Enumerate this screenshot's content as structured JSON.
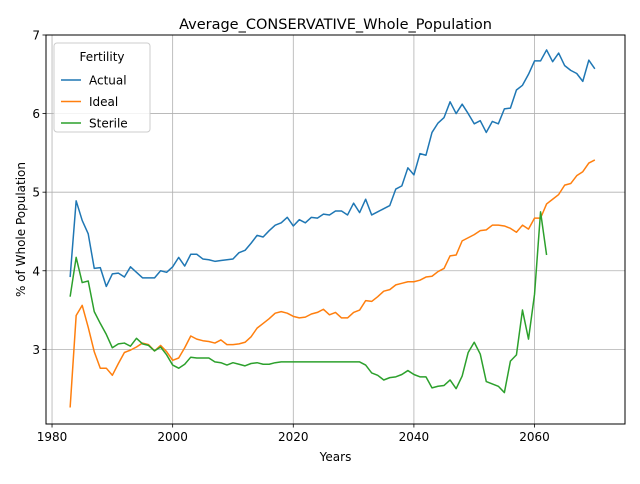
{
  "chart_data": {
    "type": "line",
    "title": "Average_CONSERVATIVE_Whole_Population",
    "xlabel": "Years",
    "ylabel": "% of Whole Population",
    "xlim": [
      1979,
      2075
    ],
    "ylim": [
      2.05,
      7.0
    ],
    "xticks": [
      1980,
      2000,
      2020,
      2040,
      2060
    ],
    "yticks": [
      3,
      4,
      5,
      6,
      7
    ],
    "grid": true,
    "legend": {
      "title": "Fertility",
      "position": "upper-left"
    },
    "series": [
      {
        "name": "Actual",
        "color": "#1f77b4",
        "x": [
          1983,
          1984,
          1985,
          1986,
          1987,
          1988,
          1989,
          1990,
          1991,
          1992,
          1993,
          1994,
          1995,
          1996,
          1997,
          1998,
          1999,
          2000,
          2001,
          2002,
          2003,
          2004,
          2005,
          2006,
          2007,
          2008,
          2009,
          2010,
          2011,
          2012,
          2013,
          2014,
          2015,
          2016,
          2017,
          2018,
          2019,
          2020,
          2021,
          2022,
          2023,
          2024,
          2025,
          2026,
          2027,
          2028,
          2029,
          2030,
          2031,
          2032,
          2033,
          2034,
          2035,
          2036,
          2037,
          2038,
          2039,
          2040,
          2041,
          2042,
          2043,
          2044,
          2045,
          2046,
          2047,
          2048,
          2049,
          2050,
          2051,
          2052,
          2053,
          2054,
          2055,
          2056,
          2057,
          2058,
          2059,
          2060,
          2061,
          2062,
          2063,
          2064,
          2065,
          2066,
          2067,
          2068,
          2069,
          2070
        ],
        "values": [
          3.92,
          4.89,
          4.64,
          4.47,
          4.03,
          4.04,
          3.8,
          3.96,
          3.97,
          3.92,
          4.05,
          3.98,
          3.91,
          3.91,
          3.91,
          4.0,
          3.98,
          4.05,
          4.17,
          4.06,
          4.21,
          4.21,
          4.15,
          4.14,
          4.12,
          4.13,
          4.14,
          4.15,
          4.23,
          4.26,
          4.35,
          4.45,
          4.43,
          4.51,
          4.58,
          4.61,
          4.68,
          4.57,
          4.65,
          4.61,
          4.68,
          4.67,
          4.72,
          4.71,
          4.76,
          4.76,
          4.71,
          4.86,
          4.74,
          4.91,
          4.71,
          4.75,
          4.79,
          4.83,
          5.04,
          5.08,
          5.31,
          5.22,
          5.49,
          5.47,
          5.76,
          5.88,
          5.95,
          6.15,
          6.0,
          6.12,
          6.0,
          5.87,
          5.91,
          5.76,
          5.9,
          5.87,
          6.06,
          6.07,
          6.3,
          6.36,
          6.5,
          6.67,
          6.67,
          6.81,
          6.66,
          6.77,
          6.61,
          6.55,
          6.51,
          6.41,
          6.68,
          6.57
        ]
      },
      {
        "name": "Ideal",
        "color": "#ff7f0e",
        "x": [
          1983,
          1984,
          1985,
          1986,
          1987,
          1988,
          1989,
          1990,
          1991,
          1992,
          1993,
          1994,
          1995,
          1996,
          1997,
          1998,
          1999,
          2000,
          2001,
          2002,
          2003,
          2004,
          2005,
          2006,
          2007,
          2008,
          2009,
          2010,
          2011,
          2012,
          2013,
          2014,
          2015,
          2016,
          2017,
          2018,
          2019,
          2020,
          2021,
          2022,
          2023,
          2024,
          2025,
          2026,
          2027,
          2028,
          2029,
          2030,
          2031,
          2032,
          2033,
          2034,
          2035,
          2036,
          2037,
          2038,
          2039,
          2040,
          2041,
          2042,
          2043,
          2044,
          2045,
          2046,
          2047,
          2048,
          2049,
          2050,
          2051,
          2052,
          2053,
          2054,
          2055,
          2056,
          2057,
          2058,
          2059,
          2060,
          2061,
          2062,
          2063,
          2064,
          2065,
          2066,
          2067,
          2068,
          2069,
          2070
        ],
        "values": [
          2.26,
          3.43,
          3.56,
          3.28,
          2.97,
          2.76,
          2.76,
          2.67,
          2.82,
          2.96,
          2.99,
          3.03,
          3.08,
          3.06,
          2.98,
          3.05,
          2.97,
          2.86,
          2.89,
          3.02,
          3.17,
          3.13,
          3.11,
          3.1,
          3.08,
          3.12,
          3.06,
          3.06,
          3.07,
          3.09,
          3.16,
          3.27,
          3.33,
          3.39,
          3.46,
          3.48,
          3.46,
          3.42,
          3.4,
          3.41,
          3.45,
          3.47,
          3.51,
          3.44,
          3.47,
          3.4,
          3.4,
          3.47,
          3.5,
          3.62,
          3.61,
          3.67,
          3.74,
          3.76,
          3.82,
          3.84,
          3.86,
          3.86,
          3.88,
          3.92,
          3.93,
          3.99,
          4.03,
          4.19,
          4.2,
          4.38,
          4.42,
          4.46,
          4.51,
          4.52,
          4.58,
          4.58,
          4.57,
          4.54,
          4.49,
          4.58,
          4.53,
          4.67,
          4.67,
          4.85,
          4.91,
          4.97,
          5.09,
          5.11,
          5.21,
          5.26,
          5.37,
          5.41
        ]
      },
      {
        "name": "Sterile",
        "color": "#2ca02c",
        "x": [
          1983,
          1984,
          1985,
          1986,
          1987,
          1988,
          1989,
          1990,
          1991,
          1992,
          1993,
          1994,
          1995,
          1996,
          1997,
          1998,
          1999,
          2000,
          2001,
          2002,
          2003,
          2004,
          2005,
          2006,
          2007,
          2008,
          2009,
          2010,
          2011,
          2012,
          2013,
          2014,
          2015,
          2016,
          2017,
          2018,
          2019,
          2020,
          2021,
          2022,
          2023,
          2024,
          2025,
          2026,
          2027,
          2028,
          2029,
          2030,
          2031,
          2032,
          2033,
          2034,
          2035,
          2036,
          2037,
          2038,
          2039,
          2040,
          2041,
          2042,
          2043,
          2044,
          2045,
          2046,
          2047,
          2048,
          2049,
          2050,
          2051,
          2052,
          2053,
          2054,
          2055,
          2056,
          2057,
          2058,
          2059,
          2060,
          2061,
          2062
        ],
        "values": [
          3.67,
          4.17,
          3.85,
          3.87,
          3.48,
          3.33,
          3.19,
          3.02,
          3.07,
          3.08,
          3.04,
          3.14,
          3.07,
          3.05,
          2.98,
          3.03,
          2.93,
          2.8,
          2.76,
          2.81,
          2.9,
          2.89,
          2.89,
          2.89,
          2.84,
          2.83,
          2.8,
          2.83,
          2.81,
          2.79,
          2.82,
          2.83,
          2.81,
          2.81,
          2.83,
          2.84,
          2.84,
          2.84,
          2.84,
          2.84,
          2.84,
          2.84,
          2.84,
          2.84,
          2.84,
          2.84,
          2.84,
          2.84,
          2.84,
          2.8,
          2.7,
          2.67,
          2.61,
          2.64,
          2.65,
          2.68,
          2.73,
          2.68,
          2.65,
          2.65,
          2.51,
          2.53,
          2.54,
          2.61,
          2.5,
          2.66,
          2.96,
          3.09,
          2.94,
          2.59,
          2.56,
          2.53,
          2.45,
          2.85,
          2.93,
          3.5,
          3.13,
          3.7,
          4.75,
          4.2
        ]
      }
    ]
  }
}
